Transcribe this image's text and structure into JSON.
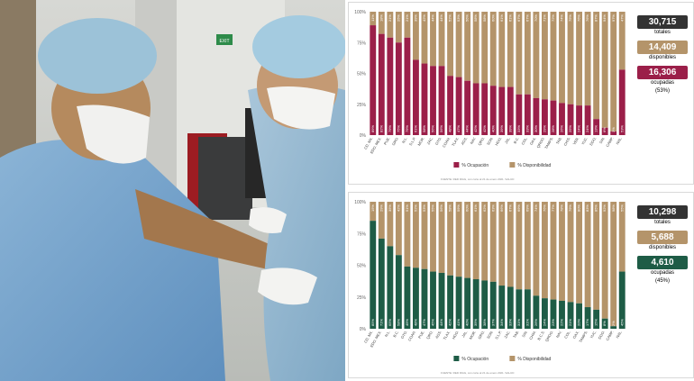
{
  "photo": {
    "alt": "",
    "signs": [
      "EXIT"
    ]
  },
  "colors": {
    "occupied_top": "#9b1f49",
    "occupied_bottom": "#1e5c46",
    "available": "#b4946a",
    "total_box": "#333333"
  },
  "chart_data": [
    {
      "type": "bar",
      "stacked": true,
      "percent": true,
      "yticks": [
        "0%",
        "25%",
        "50%",
        "75%",
        "100%"
      ],
      "ylim": [
        0,
        100
      ],
      "legend": [
        "% Ocupación",
        "% Disponibilidad"
      ],
      "legend_position": "bottom",
      "categories": [
        "CD. MX.",
        "EDO. MEX.",
        "PUE.",
        "GRO.",
        "N.L.",
        "S.L.P.",
        "MOR.",
        "ZAC.",
        "GTO.",
        "COAH.",
        "TLAX.",
        "AGS.",
        "NAY.",
        "QRO.",
        "SON.",
        "HGO.",
        "JAL.",
        "B.C.",
        "COL.",
        "OAX.",
        "QROO.",
        "TAMPS.",
        "TAB.",
        "CHIS.",
        "VER.",
        "YUC.",
        "DGO.",
        "SIN.",
        "CAMP.",
        "NAL."
      ],
      "series": [
        {
          "name": "% Ocupación",
          "values": [
            89,
            82,
            79,
            75,
            79,
            61,
            58,
            56,
            56,
            48,
            47,
            44,
            42,
            42,
            40,
            39,
            39,
            33,
            33,
            30,
            29,
            28,
            26,
            25,
            24,
            24,
            13,
            6,
            3,
            53
          ]
        },
        {
          "name": "% Disponibilidad",
          "values": [
            11,
            18,
            21,
            25,
            21,
            39,
            42,
            44,
            44,
            52,
            53,
            56,
            58,
            58,
            60,
            61,
            61,
            67,
            67,
            70,
            71,
            72,
            74,
            75,
            76,
            76,
            87,
            94,
            97,
            47
          ]
        }
      ],
      "footnote": "FUENTE: RED IRAG, con corte al 21 de enero 2021. SALUD"
    },
    {
      "type": "bar",
      "stacked": true,
      "percent": true,
      "yticks": [
        "0%",
        "25%",
        "50%",
        "75%",
        "100%"
      ],
      "ylim": [
        0,
        100
      ],
      "legend": [
        "% Ocupación",
        "% Disponibilidad"
      ],
      "legend_position": "bottom",
      "categories": [
        "CD. MX.",
        "EDO. MEX.",
        "N.L.",
        "B.C.",
        "GTO.",
        "COAH.",
        "PUE.",
        "QRO.",
        "AGS.",
        "TLAX.",
        "HGO.",
        "JAL.",
        "MOR.",
        "GRO.",
        "SON.",
        "S.L.P.",
        "ZAC.",
        "TAB.",
        "SIN.",
        "CHIH.",
        "B.C.S.",
        "QROO.",
        "NAY.",
        "COL.",
        "OAX.",
        "TAMPS.",
        "YUC.",
        "DGO.",
        "CAMP.",
        "NAL."
      ],
      "series": [
        {
          "name": "% Ocupación",
          "values": [
            85,
            71,
            65,
            58,
            49,
            48,
            47,
            45,
            44,
            42,
            41,
            40,
            39,
            38,
            37,
            34,
            33,
            31,
            31,
            26,
            24,
            23,
            22,
            21,
            20,
            17,
            15,
            8,
            2,
            45
          ]
        },
        {
          "name": "% Disponibilidad",
          "values": [
            15,
            29,
            35,
            42,
            51,
            52,
            53,
            55,
            56,
            58,
            59,
            60,
            61,
            62,
            63,
            66,
            67,
            69,
            69,
            74,
            76,
            77,
            78,
            79,
            80,
            83,
            85,
            92,
            98,
            55
          ]
        }
      ],
      "footnote": "FUENTE: RED IRAG, con corte al 21 de enero 2021. SALUD"
    }
  ],
  "stats_top": {
    "total_value": "30,715",
    "total_label": "totales",
    "avail_value": "14,409",
    "avail_label": "disponibles",
    "occ_value": "16,306",
    "occ_label": "ocupadas",
    "occ_pct": "(53%)"
  },
  "stats_bottom": {
    "total_value": "10,298",
    "total_label": "totales",
    "avail_value": "5,688",
    "avail_label": "disponibles",
    "occ_value": "4,610",
    "occ_label": "ocupadas",
    "occ_pct": "(45%)"
  }
}
